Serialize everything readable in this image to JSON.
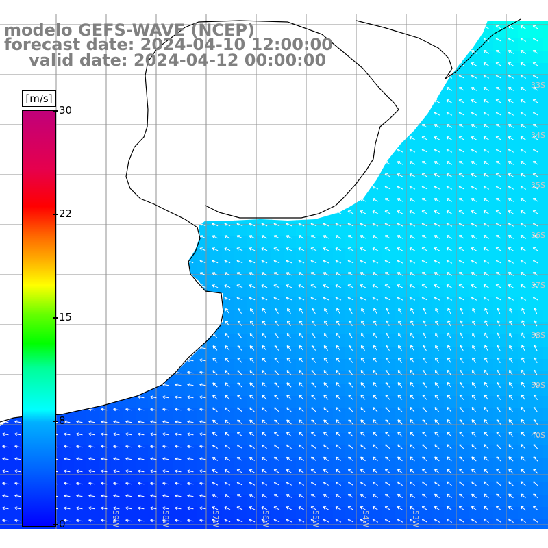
{
  "title": {
    "line1": "modelo GEFS-WAVE (NCEP)",
    "line2": "forecast date: 2024-04-10 12:00:00",
    "line3": "valid date: 2024-04-12 00:00:00"
  },
  "colorbar": {
    "unit": "[m/s]",
    "min": 0,
    "max": 30,
    "ticks": [
      {
        "label": "30",
        "value": 30
      },
      {
        "label": "22",
        "value": 22.5
      },
      {
        "label": "15",
        "value": 15
      },
      {
        "label": "8",
        "value": 7.5
      },
      {
        "label": "0",
        "value": 0
      }
    ]
  },
  "map": {
    "lat_labels": [
      "33S",
      "34S",
      "35S",
      "36S",
      "37S",
      "38S",
      "39S",
      "40S"
    ],
    "lon_labels": [
      "59W",
      "58W",
      "57W",
      "56W",
      "55W",
      "54W",
      "53W"
    ]
  },
  "colors": {
    "land": "#ffffff",
    "coastline": "#000000",
    "grid": "#909090",
    "arrow": "#ffffff",
    "title": "#808080"
  }
}
